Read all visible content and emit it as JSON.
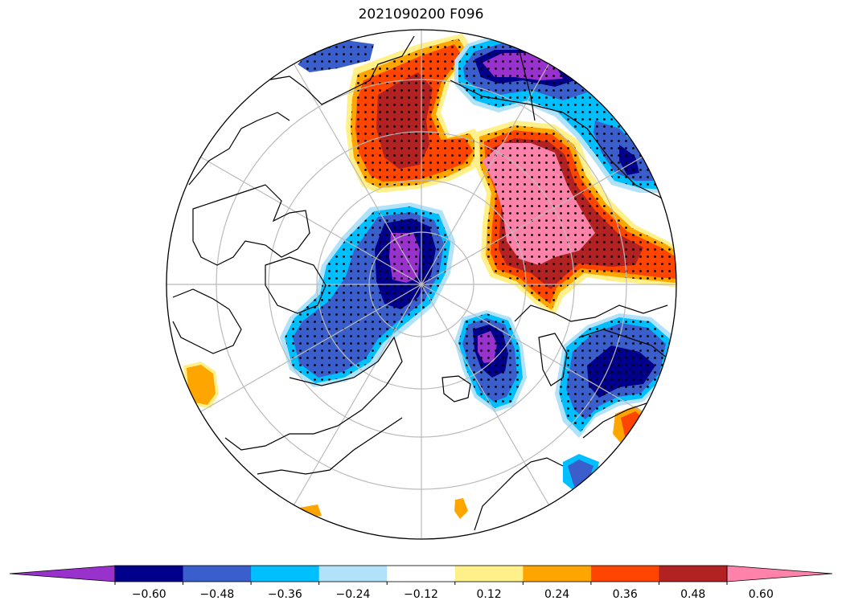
{
  "title": "2021090200 F096",
  "colorbar": {
    "colors": [
      "#9932cc",
      "#00008b",
      "#3a5fcd",
      "#00bfff",
      "#b2e2fa",
      "#ffffff",
      "#fff08a",
      "#ffa500",
      "#ff4500",
      "#b22222",
      "#ff82ab"
    ],
    "tick_labels": [
      "−0.60",
      "−0.48",
      "−0.36",
      "−0.24",
      "−0.12",
      "0.12",
      "0.24",
      "0.36",
      "0.48",
      "0.60"
    ],
    "extend": "both"
  },
  "map": {
    "projection": "north-polar-stereographic",
    "graticule_color": "#bbbbbb",
    "coastline_color": "#000000",
    "stippling": "significant regions"
  }
}
